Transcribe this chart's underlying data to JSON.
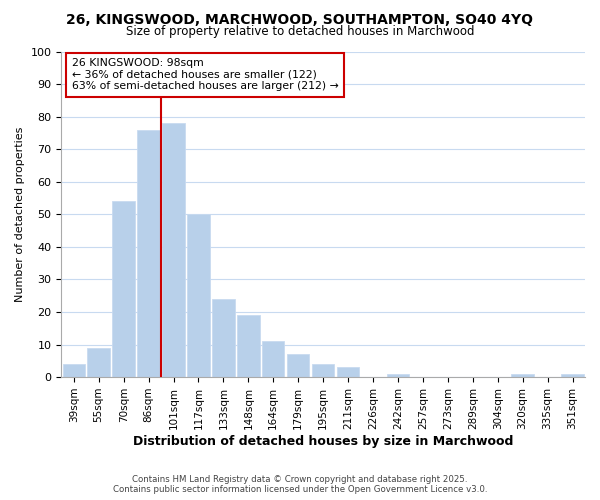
{
  "title1": "26, KINGSWOOD, MARCHWOOD, SOUTHAMPTON, SO40 4YQ",
  "title2": "Size of property relative to detached houses in Marchwood",
  "xlabel": "Distribution of detached houses by size in Marchwood",
  "ylabel": "Number of detached properties",
  "bar_labels": [
    "39sqm",
    "55sqm",
    "70sqm",
    "86sqm",
    "101sqm",
    "117sqm",
    "133sqm",
    "148sqm",
    "164sqm",
    "179sqm",
    "195sqm",
    "211sqm",
    "226sqm",
    "242sqm",
    "257sqm",
    "273sqm",
    "289sqm",
    "304sqm",
    "320sqm",
    "335sqm",
    "351sqm"
  ],
  "bar_values": [
    4,
    9,
    54,
    76,
    78,
    50,
    24,
    19,
    11,
    7,
    4,
    3,
    0,
    1,
    0,
    0,
    0,
    0,
    1,
    0,
    1
  ],
  "bar_color": "#b8d0ea",
  "bar_edge_color": "#c8daf0",
  "vline_color": "#cc0000",
  "annotation_line1": "26 KINGSWOOD: 98sqm",
  "annotation_line2": "← 36% of detached houses are smaller (122)",
  "annotation_line3": "63% of semi-detached houses are larger (212) →",
  "annotation_box_color": "#ffffff",
  "annotation_box_edge_color": "#cc0000",
  "ylim": [
    0,
    100
  ],
  "background_color": "#ffffff",
  "grid_color": "#c8daf0",
  "footer1": "Contains HM Land Registry data © Crown copyright and database right 2025.",
  "footer2": "Contains public sector information licensed under the Open Government Licence v3.0."
}
